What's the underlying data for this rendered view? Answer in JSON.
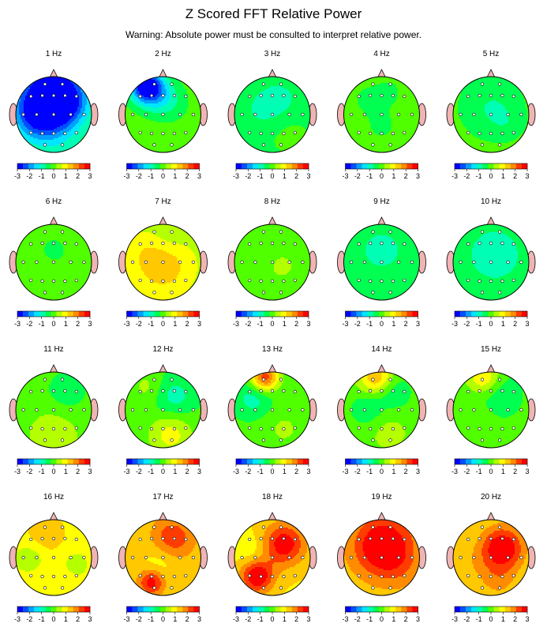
{
  "title": "Z Scored FFT Relative Power",
  "subtitle": "Warning:  Absolute power must be consulted to interpret relative power.",
  "colorbar": {
    "ticks": [
      "-3",
      "-2",
      "-1",
      "0",
      "1",
      "2",
      "3"
    ],
    "colors": [
      "#0000ff",
      "#0050ff",
      "#00a0ff",
      "#00e6ff",
      "#00ffb4",
      "#00ff50",
      "#50ff00",
      "#b4ff00",
      "#ffff00",
      "#ffc800",
      "#ff8c00",
      "#ff3c00",
      "#ff0000"
    ]
  },
  "head_colors": {
    "outline": "#000000",
    "ear": "#f0b4b4",
    "nose": "#f0b4b4",
    "electrode": "#ffffff"
  },
  "maps": [
    {
      "label": "1 Hz",
      "base": -0.3,
      "blobs": [
        [
          -0.05,
          -0.7,
          -2.6,
          0.6
        ],
        [
          -0.45,
          0.0,
          -2.0,
          0.45
        ],
        [
          0.3,
          -0.25,
          -1.6,
          0.4
        ],
        [
          0.0,
          0.55,
          -0.6,
          0.5
        ]
      ]
    },
    {
      "label": "2 Hz",
      "base": 0.0,
      "blobs": [
        [
          -0.45,
          -0.75,
          -2.8,
          0.3
        ],
        [
          -0.2,
          -0.55,
          -1.0,
          0.35
        ],
        [
          0.2,
          -0.3,
          -0.5,
          0.35
        ]
      ]
    },
    {
      "label": "3 Hz",
      "base": -0.3,
      "blobs": [
        [
          0.2,
          -0.4,
          -0.5,
          0.4
        ],
        [
          -0.3,
          -0.1,
          -0.4,
          0.4
        ],
        [
          0.35,
          0.4,
          0.2,
          0.4
        ]
      ]
    },
    {
      "label": "4 Hz",
      "base": 0.0,
      "blobs": [
        [
          -0.4,
          -0.4,
          -0.3,
          0.3
        ],
        [
          0.2,
          -0.6,
          -0.3,
          0.3
        ],
        [
          0.0,
          0.3,
          -0.3,
          0.35
        ]
      ]
    },
    {
      "label": "5 Hz",
      "base": -0.1,
      "blobs": [
        [
          0.0,
          -0.2,
          -0.6,
          0.5
        ],
        [
          0.4,
          0.2,
          -0.3,
          0.3
        ]
      ]
    },
    {
      "label": "6 Hz",
      "base": 0.0,
      "blobs": [
        [
          0.0,
          -0.3,
          -0.35,
          0.3
        ],
        [
          -0.4,
          0.3,
          0.15,
          0.3
        ]
      ]
    },
    {
      "label": "7 Hz",
      "base": 0.5,
      "blobs": [
        [
          0.0,
          0.1,
          1.0,
          0.5
        ],
        [
          0.1,
          -0.6,
          -0.3,
          0.35
        ],
        [
          -0.5,
          -0.3,
          0.3,
          0.4
        ]
      ]
    },
    {
      "label": "8 Hz",
      "base": 0.05,
      "blobs": [
        [
          0.25,
          0.1,
          0.4,
          0.2
        ],
        [
          -0.2,
          -0.4,
          -0.25,
          0.3
        ]
      ]
    },
    {
      "label": "9 Hz",
      "base": -0.35,
      "blobs": [
        [
          0.0,
          -0.3,
          -0.6,
          0.4
        ],
        [
          0.1,
          0.5,
          0.1,
          0.3
        ]
      ]
    },
    {
      "label": "10 Hz",
      "base": -0.45,
      "blobs": [
        [
          0.1,
          -0.2,
          -0.6,
          0.45
        ],
        [
          -0.3,
          0.4,
          0.0,
          0.3
        ]
      ]
    },
    {
      "label": "11 Hz",
      "base": 0.0,
      "blobs": [
        [
          0.35,
          -0.5,
          -0.5,
          0.4
        ],
        [
          0.0,
          0.65,
          0.6,
          0.45
        ]
      ]
    },
    {
      "label": "12 Hz",
      "base": -0.1,
      "blobs": [
        [
          0.3,
          -0.35,
          -0.8,
          0.4
        ],
        [
          0.2,
          0.65,
          1.0,
          0.4
        ],
        [
          -0.4,
          -0.6,
          0.5,
          0.3
        ]
      ]
    },
    {
      "label": "13 Hz",
      "base": -0.1,
      "blobs": [
        [
          -0.2,
          -0.85,
          2.5,
          0.25
        ],
        [
          -0.5,
          -0.3,
          -0.8,
          0.35
        ],
        [
          0.3,
          0.5,
          0.4,
          0.4
        ]
      ]
    },
    {
      "label": "14 Hz",
      "base": 0.0,
      "blobs": [
        [
          -0.15,
          -0.85,
          1.6,
          0.3
        ],
        [
          0.3,
          -0.45,
          -0.6,
          0.35
        ],
        [
          -0.4,
          0.0,
          -0.6,
          0.3
        ],
        [
          0.2,
          0.6,
          0.4,
          0.4
        ]
      ]
    },
    {
      "label": "15 Hz",
      "base": -0.1,
      "blobs": [
        [
          -0.2,
          -0.85,
          1.3,
          0.3
        ],
        [
          0.2,
          -0.4,
          -0.5,
          0.4
        ],
        [
          -0.3,
          0.2,
          0.2,
          0.3
        ]
      ]
    },
    {
      "label": "16 Hz",
      "base": 0.9,
      "blobs": [
        [
          -0.2,
          -0.6,
          0.6,
          0.4
        ],
        [
          -0.6,
          0.0,
          -0.6,
          0.3
        ],
        [
          0.5,
          0.2,
          -0.4,
          0.35
        ],
        [
          0.0,
          0.6,
          0.3,
          0.4
        ]
      ]
    },
    {
      "label": "17 Hz",
      "base": 1.2,
      "blobs": [
        [
          0.35,
          -0.5,
          1.0,
          0.4
        ],
        [
          -0.3,
          0.65,
          1.6,
          0.25
        ],
        [
          -0.1,
          0.2,
          -0.4,
          0.3
        ],
        [
          0.0,
          -0.7,
          0.3,
          0.35
        ]
      ]
    },
    {
      "label": "18 Hz",
      "base": 1.1,
      "blobs": [
        [
          0.3,
          -0.35,
          1.8,
          0.4
        ],
        [
          -0.4,
          0.5,
          2.0,
          0.3
        ],
        [
          -0.5,
          -0.2,
          -0.4,
          0.3
        ]
      ]
    },
    {
      "label": "19 Hz",
      "base": 1.3,
      "blobs": [
        [
          0.05,
          -0.3,
          2.0,
          0.55
        ],
        [
          0.5,
          0.3,
          0.3,
          0.4
        ],
        [
          -0.3,
          0.6,
          0.0,
          0.35
        ]
      ]
    },
    {
      "label": "20 Hz",
      "base": 1.1,
      "blobs": [
        [
          0.3,
          -0.25,
          2.0,
          0.4
        ],
        [
          -0.5,
          0.2,
          0.3,
          0.4
        ],
        [
          0.2,
          0.6,
          0.6,
          0.35
        ]
      ]
    }
  ]
}
